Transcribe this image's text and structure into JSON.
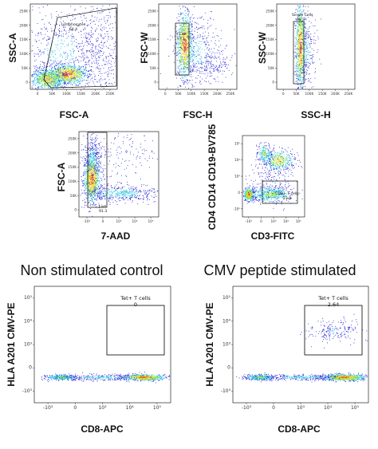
{
  "colors": {
    "low": "#2b2bd6",
    "mid": "#33c4e0",
    "midhigh": "#7fe04a",
    "high": "#f5d020",
    "peak": "#e8511a"
  },
  "conditions": {
    "left": "Non stimulated control",
    "right": "CMV peptide stimulated"
  },
  "chart_data": [
    {
      "type": "scatter",
      "xlabel": "FSC-A",
      "ylabel": "SSC-A",
      "xticks": [
        "0",
        "50K",
        "100K",
        "150K",
        "200K",
        "250K"
      ],
      "yticks": [
        "0",
        "50K",
        "100K",
        "150K",
        "200K",
        "250K"
      ],
      "gate": {
        "name": "Lymphocytes",
        "value": "64.4"
      }
    },
    {
      "type": "scatter",
      "xlabel": "FSC-H",
      "ylabel": "FSC-W",
      "xticks": [
        "0",
        "50K",
        "100K",
        "150K",
        "200K",
        "250K"
      ],
      "yticks": [
        "0",
        "50K",
        "100K",
        "150K",
        "200K",
        "250K"
      ],
      "gate": {
        "name": "FCW",
        "value": "97.1"
      }
    },
    {
      "type": "scatter",
      "xlabel": "SSC-H",
      "ylabel": "SSC-W",
      "xticks": [
        "0",
        "50K",
        "100K",
        "150K",
        "200K",
        "250K"
      ],
      "yticks": [
        "0",
        "50K",
        "100K",
        "150K",
        "200K",
        "250K"
      ],
      "gate": {
        "name": "Single Cells",
        "value": "98.9"
      }
    },
    {
      "type": "scatter",
      "xlabel": "7-AAD",
      "ylabel": "FSC-A",
      "xticks": [
        "-10³",
        "0",
        "10³",
        "10⁴",
        "10⁵"
      ],
      "yticks": [
        "0",
        "50K",
        "100K",
        "150K",
        "200K",
        "250K"
      ],
      "gate": {
        "name": "Live",
        "value": "91.3"
      }
    },
    {
      "type": "scatter",
      "xlabel": "CD3-FITC",
      "ylabel": "CD4 CD14 CD19-BV785",
      "xticks": [
        "-10³",
        "0",
        "10³",
        "10⁴",
        "10⁵"
      ],
      "yticks": [
        "-10³",
        "0",
        "10³",
        "10⁴",
        "10⁵"
      ],
      "gate": {
        "name": "CD8+ T cells",
        "value": "23.2"
      }
    },
    {
      "type": "scatter",
      "xlabel": "CD8-APC",
      "ylabel": "HLA A201 CMV-PE",
      "xticks": [
        "-10³",
        "0",
        "10³",
        "10⁴",
        "10⁵"
      ],
      "yticks": [
        "-10³",
        "0",
        "10³",
        "10⁴",
        "10⁵"
      ],
      "gate": {
        "name": "Tet+ T cells",
        "value": "0"
      }
    },
    {
      "type": "scatter",
      "xlabel": "CD8-APC",
      "ylabel": "HLA A201 CMV-PE",
      "xticks": [
        "-10³",
        "0",
        "10³",
        "10⁴",
        "10⁵"
      ],
      "yticks": [
        "-10³",
        "0",
        "10³",
        "10⁴",
        "10⁵"
      ],
      "gate": {
        "name": "Tet+ T cells",
        "value": "2.64"
      }
    }
  ]
}
